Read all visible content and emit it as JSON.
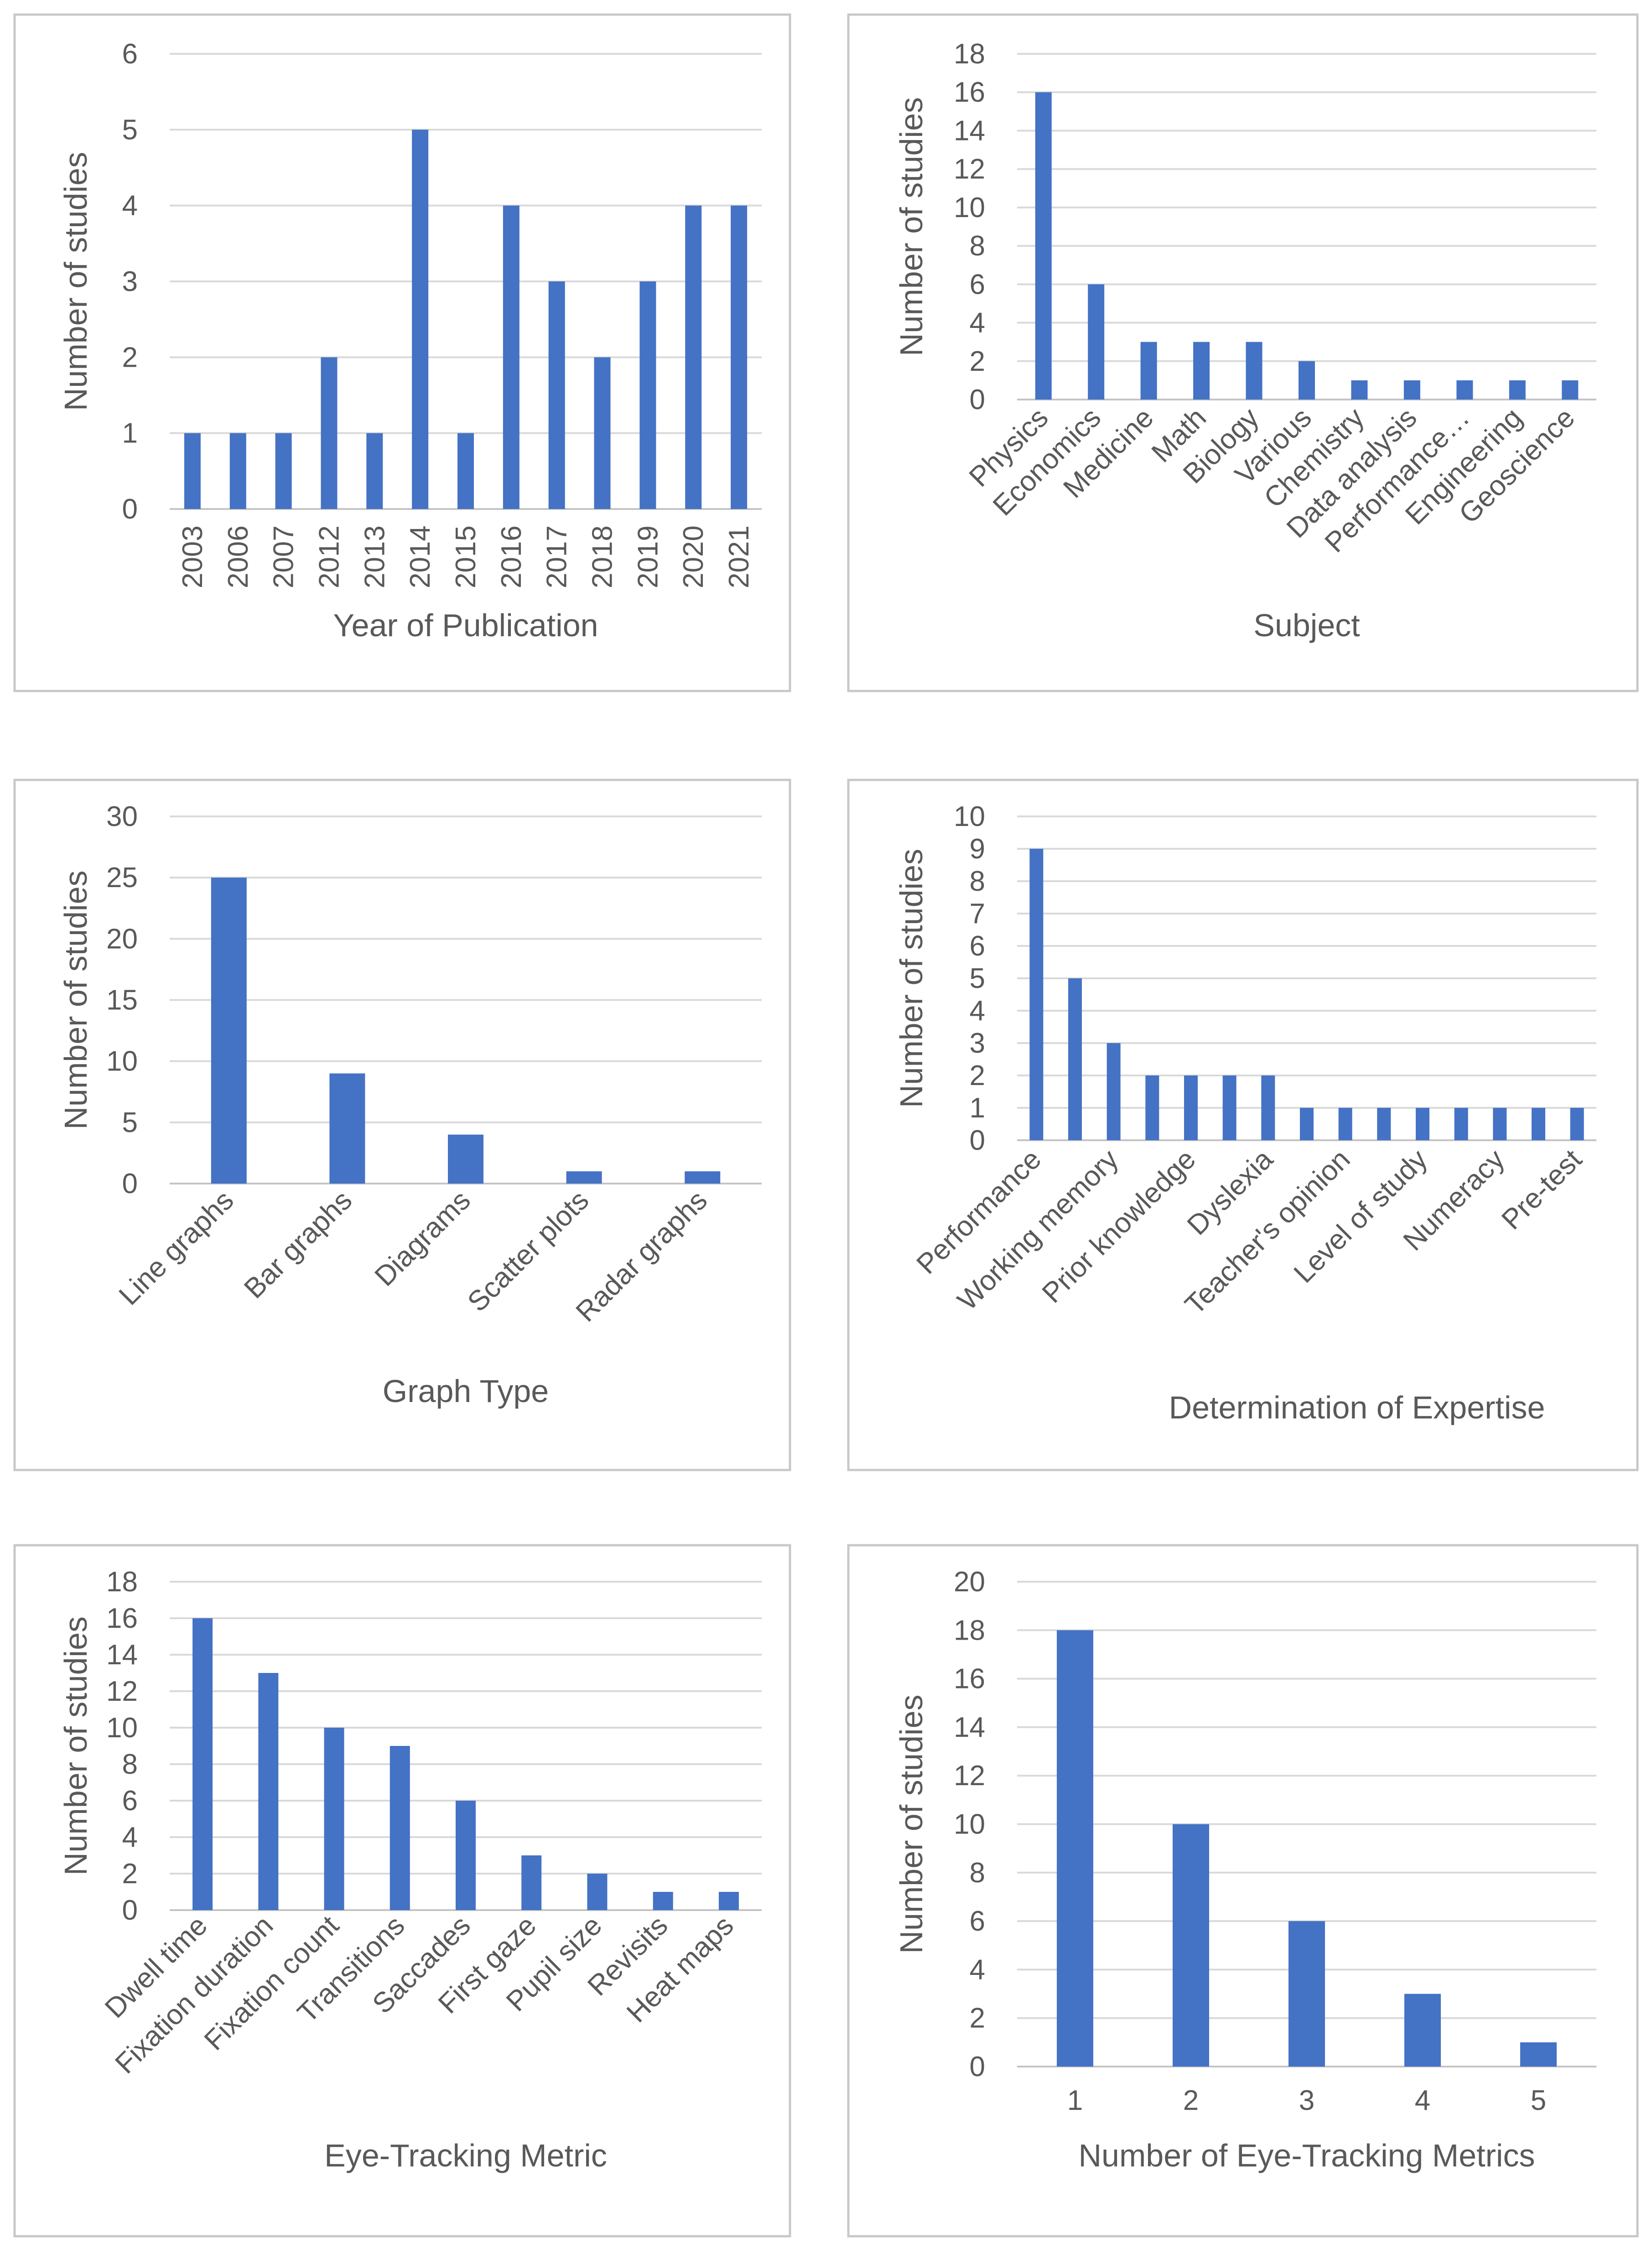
{
  "chart_data": [
    {
      "type": "bar",
      "xlabel": "Year of Publication",
      "ylabel": "Number of studies",
      "ylim": [
        0,
        6
      ],
      "ystep": 1,
      "grid": true,
      "x_tick_rotation": 90,
      "color": "#4472c4",
      "categories": [
        "2003",
        "2006",
        "2007",
        "2012",
        "2013",
        "2014",
        "2015",
        "2016",
        "2017",
        "2018",
        "2019",
        "2020",
        "2021"
      ],
      "values": [
        1,
        1,
        1,
        2,
        1,
        5,
        1,
        4,
        3,
        2,
        3,
        4,
        4
      ]
    },
    {
      "type": "bar",
      "xlabel": "Subject",
      "ylabel": "Number of studies",
      "ylim": [
        0,
        18
      ],
      "ystep": 2,
      "grid": true,
      "x_tick_rotation": 45,
      "color": "#4472c4",
      "categories": [
        "Physics",
        "Economics",
        "Medicine",
        "Math",
        "Biology",
        "Various",
        "Chemistry",
        "Data analysis",
        "Performance…",
        "Engineering",
        "Geoscience"
      ],
      "values": [
        16,
        6,
        3,
        3,
        3,
        2,
        1,
        1,
        1,
        1,
        1
      ]
    },
    {
      "type": "bar",
      "xlabel": "Graph Type",
      "ylabel": "Number of studies",
      "ylim": [
        0,
        30
      ],
      "ystep": 5,
      "grid": true,
      "x_tick_rotation": 45,
      "color": "#4472c4",
      "categories": [
        "Line graphs",
        "Bar graphs",
        "Diagrams",
        "Scatter plots",
        "Radar graphs"
      ],
      "values": [
        25,
        9,
        4,
        1,
        1
      ]
    },
    {
      "type": "bar",
      "xlabel": "Determination of Expertise",
      "ylabel": "Number of studies",
      "ylim": [
        0,
        10
      ],
      "ystep": 1,
      "grid": true,
      "x_tick_rotation": 45,
      "tick_label_every": 2,
      "color": "#4472c4",
      "categories": [
        "Performance",
        "",
        "Working memory",
        "",
        "Prior knowledge",
        "",
        "Dyslexia",
        "",
        "Teacher's opinion",
        "",
        "Level of study",
        "",
        "Numeracy",
        "",
        "Pre-test"
      ],
      "values": [
        9,
        5,
        3,
        2,
        2,
        2,
        2,
        1,
        1,
        1,
        1,
        1,
        1,
        1,
        1
      ]
    },
    {
      "type": "bar",
      "xlabel": "Eye-Tracking Metric",
      "ylabel": "Number of studies",
      "ylim": [
        0,
        18
      ],
      "ystep": 2,
      "grid": true,
      "x_tick_rotation": 45,
      "color": "#4472c4",
      "categories": [
        "Dwell time",
        "Fixation duration",
        "Fixation count",
        "Transitions",
        "Saccades",
        "First gaze",
        "Pupil size",
        "Revisits",
        "Heat maps"
      ],
      "values": [
        16,
        13,
        10,
        9,
        6,
        3,
        2,
        1,
        1
      ]
    },
    {
      "type": "bar",
      "xlabel": "Number of Eye-Tracking Metrics",
      "ylabel": "Number of studies",
      "ylim": [
        0,
        20
      ],
      "ystep": 2,
      "grid": true,
      "x_tick_rotation": 0,
      "color": "#4472c4",
      "categories": [
        "1",
        "2",
        "3",
        "4",
        "5"
      ],
      "values": [
        18,
        10,
        6,
        3,
        1
      ]
    }
  ]
}
